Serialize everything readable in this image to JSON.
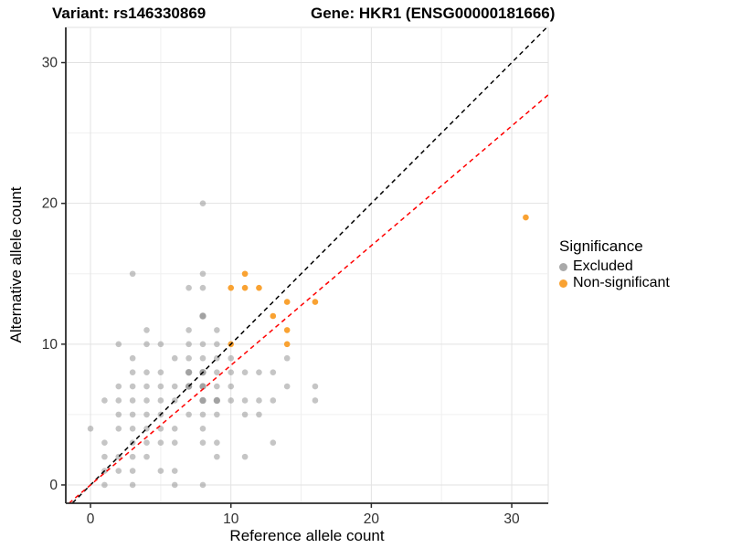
{
  "title": {
    "variant": "Variant: rs146330869",
    "gene": "Gene: HKR1 (ENSG00000181666)"
  },
  "legend": {
    "title": "Significance",
    "items": [
      {
        "label": "Excluded",
        "color": "#a9a9a9"
      },
      {
        "label": "Non-significant",
        "color": "#f9a232"
      }
    ]
  },
  "chart_data": {
    "type": "scatter",
    "title": "Variant: rs146330869  /  Gene: HKR1 (ENSG00000181666)",
    "xlabel": "Reference allele count",
    "ylabel": "Alternative allele count",
    "xlim": [
      -1.76,
      32.6
    ],
    "ylim": [
      -1.3,
      32.5
    ],
    "x_ticks": [
      0,
      10,
      20,
      30
    ],
    "y_ticks": [
      0,
      10,
      20,
      30
    ],
    "minor_ticks": [
      5,
      15,
      25
    ],
    "grid": "on",
    "legend_position": "right",
    "colors": {
      "excluded": "#969696",
      "non_significant": "#f9a232",
      "identity_line": "#000000",
      "fit_line": "#ff0000",
      "grid_major": "#e2e2e2",
      "grid_minor": "#f0f0f0",
      "axis_line": "#2b2b2b",
      "tick_text": "#303030"
    },
    "series": [
      {
        "name": "Excluded",
        "points": [
          [
            1,
            0
          ],
          [
            3,
            0
          ],
          [
            6,
            0
          ],
          [
            8,
            0
          ],
          [
            1,
            1
          ],
          [
            2,
            1
          ],
          [
            3,
            1
          ],
          [
            5,
            1
          ],
          [
            6,
            1
          ],
          [
            1,
            2
          ],
          [
            2,
            2
          ],
          [
            3,
            2
          ],
          [
            4,
            2
          ],
          [
            9,
            2
          ],
          [
            11,
            2
          ],
          [
            1,
            3
          ],
          [
            3,
            3
          ],
          [
            4,
            3
          ],
          [
            5,
            3
          ],
          [
            6,
            3
          ],
          [
            8,
            3
          ],
          [
            9,
            3
          ],
          [
            13,
            3
          ],
          [
            0,
            4
          ],
          [
            2,
            4
          ],
          [
            3,
            4
          ],
          [
            4,
            4
          ],
          [
            5,
            4
          ],
          [
            6,
            4
          ],
          [
            8,
            4
          ],
          [
            2,
            5
          ],
          [
            3,
            5
          ],
          [
            4,
            5
          ],
          [
            5,
            5
          ],
          [
            7,
            5
          ],
          [
            8,
            5
          ],
          [
            9,
            5
          ],
          [
            11,
            5
          ],
          [
            12,
            5
          ],
          [
            1,
            6
          ],
          [
            2,
            6
          ],
          [
            3,
            6
          ],
          [
            4,
            6
          ],
          [
            5,
            6
          ],
          [
            6,
            6
          ],
          [
            8,
            6
          ],
          [
            9,
            6
          ],
          [
            10,
            6
          ],
          [
            11,
            6
          ],
          [
            12,
            6
          ],
          [
            13,
            6
          ],
          [
            16,
            6
          ],
          [
            2,
            7
          ],
          [
            3,
            7
          ],
          [
            4,
            7
          ],
          [
            5,
            7
          ],
          [
            6,
            7
          ],
          [
            7,
            7
          ],
          [
            8,
            7
          ],
          [
            9,
            7
          ],
          [
            10,
            7
          ],
          [
            14,
            7
          ],
          [
            16,
            7
          ],
          [
            3,
            8
          ],
          [
            4,
            8
          ],
          [
            5,
            8
          ],
          [
            7,
            8
          ],
          [
            8,
            8
          ],
          [
            9,
            8
          ],
          [
            10,
            8
          ],
          [
            11,
            8
          ],
          [
            12,
            8
          ],
          [
            13,
            8
          ],
          [
            3,
            9
          ],
          [
            6,
            9
          ],
          [
            7,
            9
          ],
          [
            8,
            9
          ],
          [
            9,
            9
          ],
          [
            10,
            9
          ],
          [
            14,
            9
          ],
          [
            2,
            10
          ],
          [
            4,
            10
          ],
          [
            5,
            10
          ],
          [
            7,
            10
          ],
          [
            8,
            10
          ],
          [
            9,
            10
          ],
          [
            4,
            11
          ],
          [
            7,
            11
          ],
          [
            9,
            11
          ],
          [
            8,
            12
          ],
          [
            7,
            14
          ],
          [
            8,
            14
          ],
          [
            3,
            15
          ],
          [
            8,
            15
          ],
          [
            8,
            20
          ]
        ],
        "overlap_points": [
          [
            7,
            7
          ],
          [
            7,
            8
          ],
          [
            8,
            8
          ],
          [
            8,
            6
          ],
          [
            9,
            6
          ],
          [
            8,
            7
          ],
          [
            8,
            12
          ]
        ]
      },
      {
        "name": "Non-significant",
        "points": [
          [
            10,
            10
          ],
          [
            14,
            10
          ],
          [
            14,
            11
          ],
          [
            13,
            12
          ],
          [
            14,
            13
          ],
          [
            16,
            13
          ],
          [
            10,
            14
          ],
          [
            11,
            14
          ],
          [
            12,
            14
          ],
          [
            11,
            15
          ],
          [
            31,
            19
          ]
        ]
      }
    ],
    "lines": [
      {
        "name": "identity",
        "slope": 1,
        "intercept": 0,
        "style": "dashed"
      },
      {
        "name": "fit",
        "slope": 0.85,
        "intercept": 0,
        "style": "dashed"
      }
    ]
  }
}
